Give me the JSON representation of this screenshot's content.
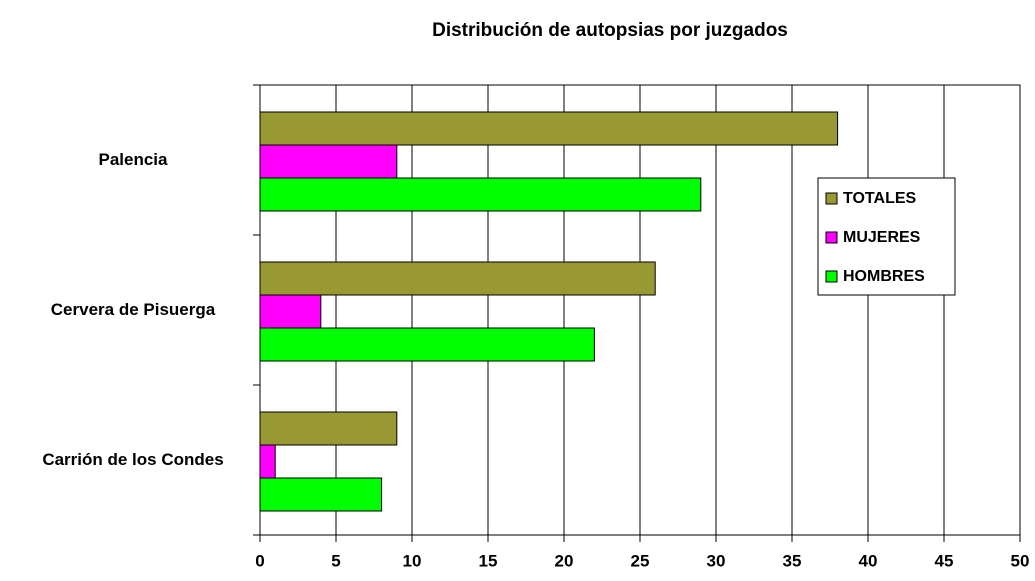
{
  "chart_data": {
    "type": "bar",
    "orientation": "horizontal",
    "title": "Distribución de autopsias por juzgados",
    "categories": [
      "Palencia",
      "Cervera de Pisuerga",
      "Carrión de los Condes"
    ],
    "series": [
      {
        "name": "TOTALES",
        "color": "#999933",
        "values": [
          38,
          26,
          9
        ]
      },
      {
        "name": "MUJERES",
        "color": "#ff00ff",
        "values": [
          9,
          4,
          1
        ]
      },
      {
        "name": "HOMBRES",
        "color": "#00ff00",
        "values": [
          29,
          22,
          8
        ]
      }
    ],
    "xlim": [
      0,
      50
    ],
    "xticks": [
      0,
      5,
      10,
      15,
      20,
      25,
      30,
      35,
      40,
      45,
      50
    ],
    "grid": true,
    "legend": "right"
  }
}
